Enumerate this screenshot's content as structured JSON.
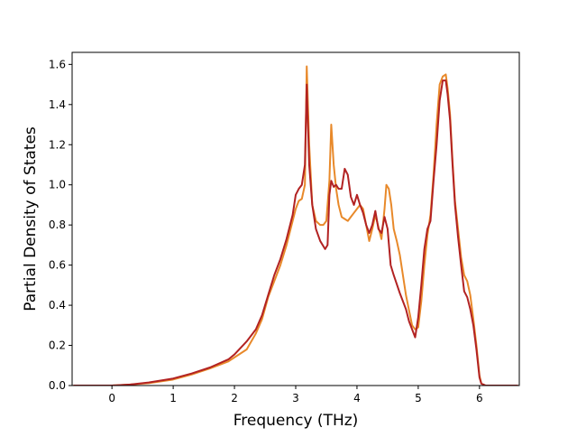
{
  "chart_data": {
    "type": "line",
    "title": "",
    "xlabel": "Frequency (THz)",
    "ylabel": "Partial Density of States",
    "xlim": [
      -0.65,
      6.65
    ],
    "ylim": [
      0.0,
      1.66
    ],
    "x_ticks": [
      "0",
      "1",
      "2",
      "3",
      "4",
      "5",
      "6"
    ],
    "y_ticks": [
      "0.0",
      "0.2",
      "0.4",
      "0.6",
      "0.8",
      "1.0",
      "1.2",
      "1.4",
      "1.6"
    ],
    "grid": false,
    "legend": "none",
    "series": [
      {
        "color": "#e8892a",
        "x": [
          -0.62,
          0.0,
          0.3,
          0.6,
          1.0,
          1.3,
          1.6,
          1.9,
          2.2,
          2.35,
          2.45,
          2.55,
          2.65,
          2.75,
          2.85,
          2.95,
          3.0,
          3.05,
          3.1,
          3.15,
          3.18,
          3.22,
          3.27,
          3.33,
          3.4,
          3.45,
          3.5,
          3.55,
          3.58,
          3.62,
          3.66,
          3.7,
          3.75,
          3.8,
          3.85,
          3.9,
          3.95,
          4.0,
          4.05,
          4.1,
          4.15,
          4.2,
          4.25,
          4.3,
          4.35,
          4.4,
          4.45,
          4.48,
          4.52,
          4.56,
          4.6,
          4.65,
          4.7,
          4.8,
          4.9,
          4.95,
          5.0,
          5.05,
          5.1,
          5.15,
          5.2,
          5.25,
          5.3,
          5.35,
          5.4,
          5.45,
          5.48,
          5.52,
          5.56,
          5.6,
          5.65,
          5.7,
          5.75,
          5.8,
          5.85,
          5.9,
          5.95,
          6.0,
          6.03,
          6.1,
          6.3,
          6.62
        ],
        "y": [
          0.0,
          0.0,
          0.005,
          0.012,
          0.03,
          0.055,
          0.085,
          0.12,
          0.18,
          0.26,
          0.33,
          0.44,
          0.52,
          0.6,
          0.7,
          0.82,
          0.88,
          0.92,
          0.93,
          1.0,
          1.59,
          1.2,
          0.9,
          0.82,
          0.8,
          0.8,
          0.82,
          1.02,
          1.3,
          1.1,
          0.98,
          0.9,
          0.84,
          0.83,
          0.82,
          0.84,
          0.86,
          0.88,
          0.9,
          0.88,
          0.8,
          0.72,
          0.78,
          0.85,
          0.79,
          0.73,
          0.88,
          1.0,
          0.98,
          0.9,
          0.78,
          0.72,
          0.65,
          0.45,
          0.3,
          0.28,
          0.29,
          0.42,
          0.6,
          0.75,
          0.85,
          1.05,
          1.3,
          1.5,
          1.54,
          1.55,
          1.48,
          1.35,
          1.12,
          0.92,
          0.78,
          0.64,
          0.55,
          0.52,
          0.45,
          0.33,
          0.2,
          0.05,
          0.01,
          0.0,
          0.0,
          0.0
        ]
      },
      {
        "color": "#b22222",
        "x": [
          -0.62,
          0.0,
          0.3,
          0.6,
          1.0,
          1.3,
          1.6,
          1.9,
          2.0,
          2.2,
          2.35,
          2.45,
          2.55,
          2.65,
          2.75,
          2.85,
          2.95,
          3.0,
          3.05,
          3.1,
          3.15,
          3.18,
          3.22,
          3.27,
          3.33,
          3.4,
          3.48,
          3.52,
          3.55,
          3.58,
          3.62,
          3.66,
          3.7,
          3.75,
          3.8,
          3.85,
          3.9,
          3.95,
          4.0,
          4.05,
          4.1,
          4.15,
          4.2,
          4.25,
          4.3,
          4.35,
          4.4,
          4.45,
          4.5,
          4.55,
          4.6,
          4.7,
          4.8,
          4.85,
          4.9,
          4.95,
          5.0,
          5.05,
          5.1,
          5.15,
          5.2,
          5.25,
          5.3,
          5.35,
          5.4,
          5.45,
          5.48,
          5.52,
          5.56,
          5.6,
          5.65,
          5.7,
          5.75,
          5.8,
          5.85,
          5.9,
          5.95,
          6.0,
          6.03,
          6.1,
          6.3,
          6.62
        ],
        "y": [
          0.0,
          0.0,
          0.005,
          0.015,
          0.035,
          0.06,
          0.09,
          0.13,
          0.155,
          0.22,
          0.28,
          0.35,
          0.45,
          0.55,
          0.63,
          0.73,
          0.85,
          0.95,
          0.98,
          1.0,
          1.1,
          1.5,
          1.1,
          0.9,
          0.78,
          0.72,
          0.68,
          0.7,
          0.95,
          1.02,
          0.99,
          1.0,
          0.98,
          0.98,
          1.08,
          1.05,
          0.94,
          0.9,
          0.95,
          0.9,
          0.86,
          0.8,
          0.76,
          0.8,
          0.87,
          0.78,
          0.76,
          0.84,
          0.78,
          0.6,
          0.55,
          0.46,
          0.38,
          0.32,
          0.28,
          0.24,
          0.34,
          0.5,
          0.68,
          0.78,
          0.82,
          1.02,
          1.2,
          1.42,
          1.52,
          1.52,
          1.45,
          1.32,
          1.1,
          0.9,
          0.74,
          0.6,
          0.47,
          0.44,
          0.38,
          0.3,
          0.18,
          0.04,
          0.01,
          0.0,
          0.0,
          0.0
        ]
      }
    ]
  }
}
